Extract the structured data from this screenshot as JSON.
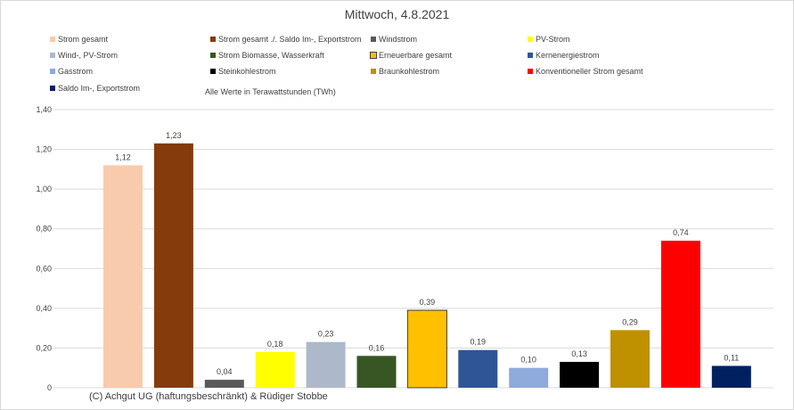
{
  "chart_data": {
    "type": "bar",
    "title": "Mittwoch, 4.8.2021",
    "note": "Alle Werte in Terawattstunden (TWh)",
    "copyright": "(C) Achgut UG (haftungsbeschränkt) & Rüdiger Stobbe",
    "ylim": [
      0,
      1.4
    ],
    "yticks": [
      "0",
      "0,20",
      "0,40",
      "0,60",
      "0,80",
      "1,00",
      "1,20",
      "1,40"
    ],
    "series": [
      {
        "name": "Strom gesamt",
        "value": 1.12,
        "label": "1,12",
        "color": "#f8cbad"
      },
      {
        "name": "Strom gesamt ./. Saldo Im-, Exportstrom",
        "value": 1.23,
        "label": "1,23",
        "color": "#843c0c"
      },
      {
        "name": "Windstrom",
        "value": 0.04,
        "label": "0,04",
        "color": "#595959"
      },
      {
        "name": "PV-Strom",
        "value": 0.18,
        "label": "0,18",
        "color": "#ffff00"
      },
      {
        "name": "Wind-, PV-Strom",
        "value": 0.23,
        "label": "0,23",
        "color": "#adb9ca"
      },
      {
        "name": "Strom Biomasse, Wasserkraft",
        "value": 0.16,
        "label": "0,16",
        "color": "#375623"
      },
      {
        "name": "Erneuerbare gesamt",
        "value": 0.39,
        "label": "0,39",
        "color": "#ffc000",
        "outline": "#404040"
      },
      {
        "name": "Kernenergiestrom",
        "value": 0.19,
        "label": "0,19",
        "color": "#2f5597"
      },
      {
        "name": "Gasstrom",
        "value": 0.1,
        "label": "0,10",
        "color": "#8faadc"
      },
      {
        "name": "Steinkohlestrom",
        "value": 0.13,
        "label": "0,13",
        "color": "#000000"
      },
      {
        "name": "Braunkohlestrom",
        "value": 0.29,
        "label": "0,29",
        "color": "#bf9000"
      },
      {
        "name": "Konventioneller Strom gesamt",
        "value": 0.74,
        "label": "0,74",
        "color": "#ff0000"
      },
      {
        "name": "Saldo Im-, Exportstrom",
        "value": 0.11,
        "label": "0,11",
        "color": "#002060"
      }
    ]
  }
}
